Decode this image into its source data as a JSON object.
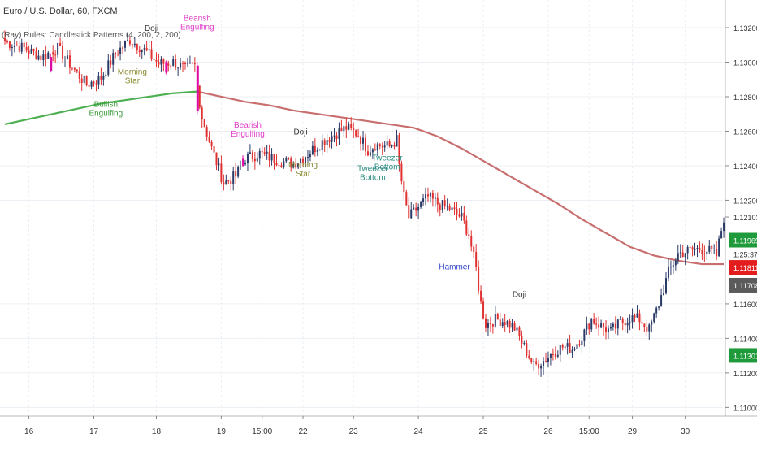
{
  "header": {
    "symbol": "Euro / U.S. Dollar, 60, FXCM",
    "indicator": "(Ray) Rules: Candlestick Patterns (4, 200, 2, 200)"
  },
  "colors": {
    "up": "#2a3a66",
    "down": "#e03030",
    "highlight": "#e00aa4",
    "ma_up": "#4caf50",
    "ma_down": "#c96e6e",
    "bearish_label": "#e040c8",
    "bullish_label": "#3a9a3a",
    "morning_star_label": "#8a8a30",
    "doji_label": "#333333",
    "tweezer_label": "#2a8a80",
    "hammer_label": "#3344cc"
  },
  "axis": {
    "y_ticks": [
      "1.13200",
      "1.13000",
      "1.12800",
      "1.12600",
      "1.12400",
      "1.12200",
      "1.12103",
      "1.11600",
      "1.11400",
      "1.11200",
      "1.11000"
    ],
    "x_ticks": [
      "16",
      "17",
      "18",
      "19",
      "15:00",
      "22",
      "23",
      "24",
      "25",
      "26",
      "15:00",
      "29",
      "30"
    ],
    "countdown": "1:25:37",
    "price_tags": [
      {
        "text": "1.11969",
        "bg": "#1f9a3a"
      },
      {
        "text": "1.11811",
        "bg": "#e31d1d"
      },
      {
        "text": "1.11708",
        "bg": "#5b5b5b"
      },
      {
        "text": "1.11301",
        "bg": "#1f9a3a"
      }
    ]
  },
  "chart_data": {
    "type": "candlestick",
    "title": "Euro / U.S. Dollar, 60, FXCM",
    "ylim": [
      1.1095,
      1.1336
    ],
    "y_ticks": [
      1.132,
      1.13,
      1.128,
      1.126,
      1.124,
      1.122,
      1.116,
      1.114,
      1.112,
      1.11
    ],
    "x_ticks": [
      "16",
      "17",
      "18",
      "19",
      "15:00",
      "22",
      "23",
      "24",
      "25",
      "26",
      "15:00",
      "29",
      "30"
    ],
    "last_price": 1.12103,
    "grid": true,
    "anchors": [
      [
        0,
        1.1312
      ],
      [
        8,
        1.1308
      ],
      [
        15,
        1.1303
      ],
      [
        22,
        1.1308
      ],
      [
        28,
        1.1297
      ],
      [
        34,
        1.1287
      ],
      [
        40,
        1.1291
      ],
      [
        46,
        1.1305
      ],
      [
        52,
        1.1313
      ],
      [
        58,
        1.1307
      ],
      [
        64,
        1.1299
      ],
      [
        70,
        1.13
      ],
      [
        75,
        1.1296
      ],
      [
        79,
        1.1298
      ],
      [
        80,
        1.1286
      ],
      [
        82,
        1.1268
      ],
      [
        86,
        1.125
      ],
      [
        91,
        1.123
      ],
      [
        96,
        1.1234
      ],
      [
        100,
        1.1244
      ],
      [
        106,
        1.1247
      ],
      [
        112,
        1.1244
      ],
      [
        117,
        1.1242
      ],
      [
        120,
        1.1241
      ],
      [
        126,
        1.1247
      ],
      [
        132,
        1.1254
      ],
      [
        138,
        1.1259
      ],
      [
        142,
        1.1262
      ],
      [
        147,
        1.1258
      ],
      [
        151,
        1.1249
      ],
      [
        154,
        1.1252
      ],
      [
        160,
        1.1251
      ],
      [
        163,
        1.1255
      ],
      [
        164,
        1.124
      ],
      [
        166,
        1.1222
      ],
      [
        168,
        1.121
      ],
      [
        172,
        1.1216
      ],
      [
        176,
        1.1222
      ],
      [
        180,
        1.1218
      ],
      [
        185,
        1.1215
      ],
      [
        190,
        1.121
      ],
      [
        193,
        1.12
      ],
      [
        196,
        1.118
      ],
      [
        198,
        1.116
      ],
      [
        200,
        1.1148
      ],
      [
        204,
        1.1151
      ],
      [
        208,
        1.115
      ],
      [
        212,
        1.1146
      ],
      [
        216,
        1.1135
      ],
      [
        220,
        1.1124
      ],
      [
        224,
        1.1127
      ],
      [
        228,
        1.1132
      ],
      [
        232,
        1.1135
      ],
      [
        236,
        1.1134
      ],
      [
        240,
        1.1141
      ],
      [
        244,
        1.1151
      ],
      [
        248,
        1.1147
      ],
      [
        252,
        1.1144
      ],
      [
        256,
        1.1149
      ],
      [
        260,
        1.1152
      ],
      [
        264,
        1.1151
      ],
      [
        268,
        1.1145
      ],
      [
        272,
        1.116
      ],
      [
        276,
        1.1178
      ],
      [
        280,
        1.1189
      ],
      [
        285,
        1.1191
      ],
      [
        290,
        1.1192
      ],
      [
        294,
        1.119
      ],
      [
        296,
        1.1188
      ],
      [
        299,
        1.121
      ]
    ],
    "count": 300,
    "highlights": [
      {
        "index": 19,
        "open": 1.1303,
        "close": 1.1295,
        "high": 1.1305,
        "low": 1.1294
      },
      {
        "index": 67,
        "open": 1.13,
        "close": 1.1294,
        "high": 1.1301,
        "low": 1.1293
      },
      {
        "index": 80,
        "open": 1.1298,
        "close": 1.1272,
        "high": 1.13,
        "low": 1.127
      },
      {
        "index": 99,
        "open": 1.1244,
        "close": 1.124,
        "high": 1.1246,
        "low": 1.1239
      }
    ],
    "ma": {
      "period": 200,
      "points": [
        [
          0,
          1.1264
        ],
        [
          10,
          1.1267
        ],
        [
          20,
          1.127
        ],
        [
          30,
          1.1273
        ],
        [
          40,
          1.1276
        ],
        [
          50,
          1.1278
        ],
        [
          60,
          1.128
        ],
        [
          70,
          1.1282
        ],
        [
          80,
          1.1283
        ],
        [
          90,
          1.128
        ],
        [
          100,
          1.1277
        ],
        [
          110,
          1.1275
        ],
        [
          120,
          1.1272
        ],
        [
          130,
          1.127
        ],
        [
          140,
          1.1268
        ],
        [
          150,
          1.1266
        ],
        [
          160,
          1.1264
        ],
        [
          170,
          1.1262
        ],
        [
          180,
          1.1257
        ],
        [
          190,
          1.125
        ],
        [
          200,
          1.1242
        ],
        [
          210,
          1.1234
        ],
        [
          220,
          1.1226
        ],
        [
          230,
          1.1218
        ],
        [
          240,
          1.1209
        ],
        [
          250,
          1.1201
        ],
        [
          260,
          1.1193
        ],
        [
          270,
          1.1188
        ],
        [
          280,
          1.1185
        ],
        [
          290,
          1.1183
        ],
        [
          299,
          1.1183
        ]
      ],
      "turn_index": 80
    },
    "annotations": [
      {
        "text": "Bearish|Engulfing",
        "index": 80,
        "price": 1.1324,
        "color": "#e040c8",
        "anchor": "middle"
      },
      {
        "text": "Doji",
        "index": 61,
        "price": 1.1318,
        "color": "#333333",
        "anchor": "middle"
      },
      {
        "text": "Morning|Star",
        "index": 53,
        "price": 1.1293,
        "color": "#8a8a30",
        "anchor": "middle"
      },
      {
        "text": "Bullish|Engulfing",
        "index": 42,
        "price": 1.1274,
        "color": "#3a9a3a",
        "anchor": "middle"
      },
      {
        "text": "Bearish|Engulfing",
        "index": 101,
        "price": 1.1262,
        "color": "#e040c8",
        "anchor": "middle"
      },
      {
        "text": "Doji",
        "index": 123,
        "price": 1.1258,
        "color": "#333333",
        "anchor": "middle"
      },
      {
        "text": "Morning|Star",
        "index": 124,
        "price": 1.1239,
        "color": "#8a8a30",
        "anchor": "middle"
      },
      {
        "text": "Tweezer|Bottom",
        "index": 159,
        "price": 1.1243,
        "color": "#2a8a80",
        "anchor": "middle"
      },
      {
        "text": "Tweezer|Bottom",
        "index": 153,
        "price": 1.1237,
        "color": "#2a8a80",
        "anchor": "middle"
      },
      {
        "text": "Hammer",
        "index": 187,
        "price": 1.118,
        "color": "#3344cc",
        "anchor": "middle"
      },
      {
        "text": "Doji",
        "index": 214,
        "price": 1.1164,
        "color": "#333333",
        "anchor": "middle"
      }
    ]
  }
}
